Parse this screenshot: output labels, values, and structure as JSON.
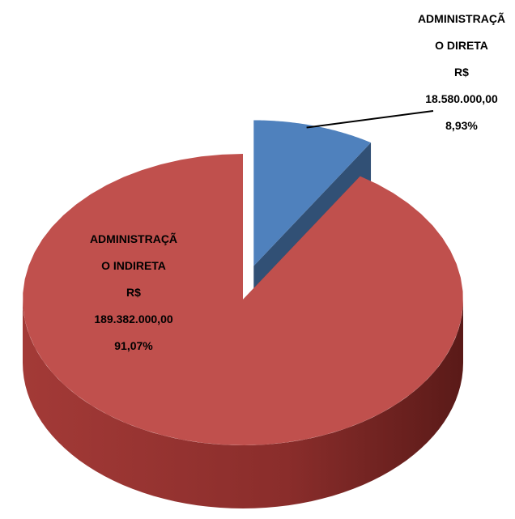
{
  "chart_data": {
    "type": "pie",
    "categories": [
      "ADMINISTRAÇÃO DIRETA",
      "ADMINISTRAÇÃO INDIRETA"
    ],
    "values": [
      8.93,
      91.07
    ],
    "value_labels": [
      "8,93%",
      "91,07%"
    ],
    "amounts": [
      18580000,
      189382000
    ],
    "amount_labels": [
      "R$ 18.580.000,00",
      "R$ 189.382.000,00"
    ],
    "colors": [
      "#4f81bd",
      "#c0504d"
    ],
    "exploded": [
      true,
      false
    ],
    "three_d": true
  }
}
